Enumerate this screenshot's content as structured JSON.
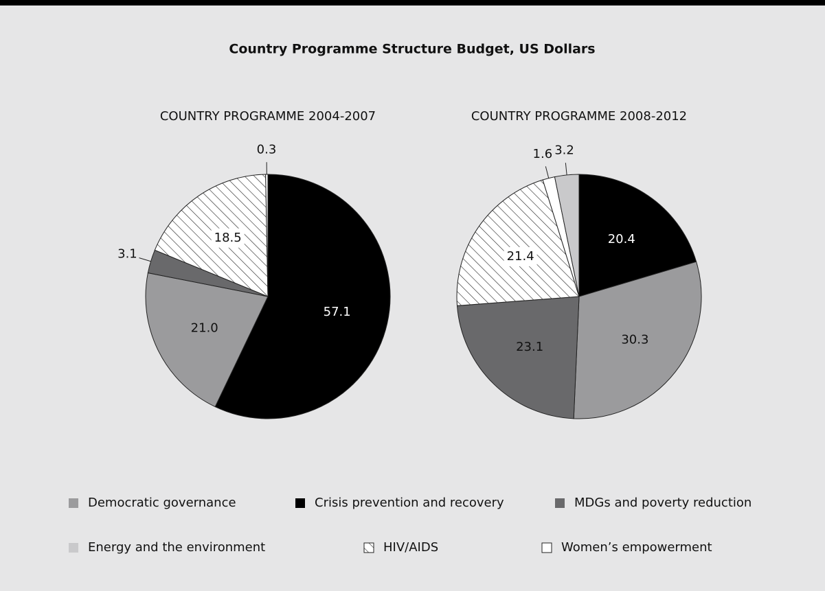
{
  "title": "Country Programme Structure Budget, US Dollars",
  "legend": [
    {
      "name": "Democratic governance",
      "color": "#9b9b9d"
    },
    {
      "name": "Crisis prevention and recovery",
      "color": "#000000"
    },
    {
      "name": "MDGs and poverty reduction",
      "color": "#69696b"
    },
    {
      "name": "Energy and the environment",
      "color": "#c9c9cb"
    },
    {
      "name": "HIV/AIDS",
      "color": "hatch"
    },
    {
      "name": "Women’s empowerment",
      "color": "#ffffff"
    }
  ],
  "chart_data": [
    {
      "type": "pie",
      "title": "COUNTRY PROGRAMME 2004-2007",
      "values": [
        57.1,
        21.0,
        3.1,
        18.5,
        0.3
      ],
      "value_labels": [
        "57.1",
        "21.0",
        "3.1",
        "18.5",
        "0.3"
      ],
      "colors": [
        "#000000",
        "#9b9b9d",
        "#69696b",
        "hatch",
        "#ffffff"
      ]
    },
    {
      "type": "pie",
      "title": "COUNTRY PROGRAMME 2008-2012",
      "values": [
        20.4,
        30.3,
        23.1,
        21.4,
        1.6,
        3.2
      ],
      "value_labels": [
        "20.4",
        "30.3",
        "23.1",
        "21.4",
        "1.6",
        "3.2"
      ],
      "colors": [
        "#000000",
        "#9b9b9d",
        "#69696b",
        "hatch",
        "#ffffff",
        "#c9c9cb"
      ]
    }
  ]
}
